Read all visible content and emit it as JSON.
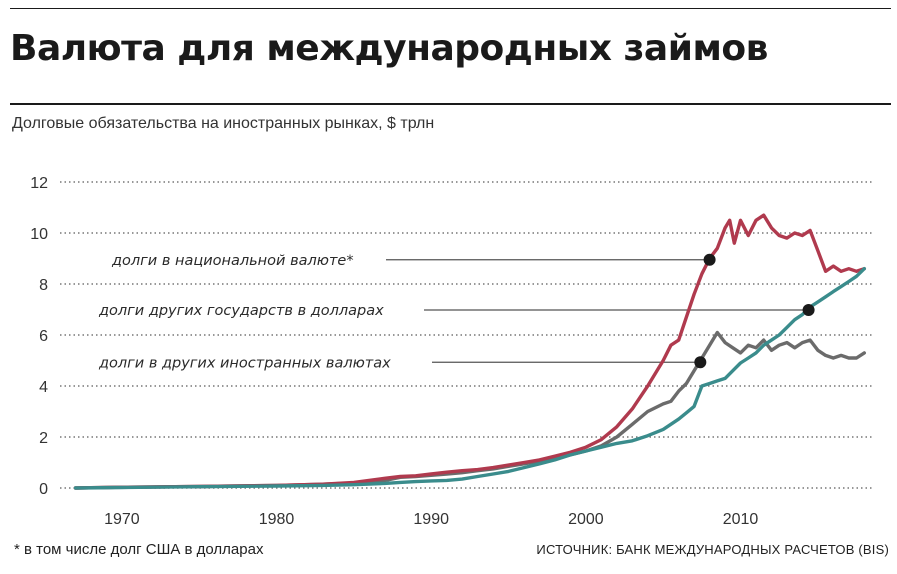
{
  "header": {
    "title": "Валюта для международных займов",
    "subtitle": "Долговые обязательства на иностранных рынках, $ трлн"
  },
  "footer": {
    "footnote": "* в том числе долг США в долларах",
    "source": "ИСТОЧНИК: БАНК МЕЖДУНАРОДНЫХ РАСЧЕТОВ (BIS)"
  },
  "colors": {
    "domestic": "#b03a4e",
    "foreign": "#6b6b6b",
    "dollar": "#3a8c8c",
    "grid": "#777777",
    "dot": "#1a1a1a"
  },
  "chart_data": {
    "type": "line",
    "xlim": [
      1966,
      2018.5
    ],
    "ylim": [
      0,
      12
    ],
    "y_ticks": [
      "0",
      "2",
      "4",
      "6",
      "8",
      "10",
      "12"
    ],
    "x_ticks": [
      "1970",
      "1980",
      "1990",
      "2000",
      "2010"
    ],
    "grid": "horizontal dotted",
    "series": [
      {
        "key": "domestic",
        "name": "долги в национальной валюте*",
        "color": "#b03a4e",
        "x": [
          1967,
          1970,
          1975,
          1980,
          1983,
          1985,
          1987,
          1988,
          1989,
          1990,
          1991,
          1992,
          1993,
          1994,
          1995,
          1996,
          1997,
          1998,
          1999,
          2000,
          2001,
          2002,
          2003,
          2004,
          2005,
          2005.5,
          2006,
          2006.5,
          2007,
          2007.5,
          2008,
          2008.5,
          2009,
          2009.3,
          2009.6,
          2010,
          2010.5,
          2011,
          2011.5,
          2012,
          2012.5,
          2013,
          2013.5,
          2014,
          2014.5,
          2015,
          2015.5,
          2016,
          2016.5,
          2017,
          2017.5,
          2018
        ],
        "y": [
          0,
          0.03,
          0.06,
          0.1,
          0.15,
          0.22,
          0.38,
          0.45,
          0.48,
          0.55,
          0.62,
          0.68,
          0.72,
          0.8,
          0.9,
          1.0,
          1.1,
          1.25,
          1.4,
          1.6,
          1.9,
          2.4,
          3.1,
          4.0,
          5.0,
          5.6,
          5.8,
          6.7,
          7.6,
          8.4,
          9.0,
          9.4,
          10.2,
          10.5,
          9.6,
          10.5,
          9.9,
          10.5,
          10.7,
          10.2,
          9.9,
          9.8,
          10.0,
          9.9,
          10.1,
          9.3,
          8.5,
          8.7,
          8.5,
          8.6,
          8.5,
          8.6
        ]
      },
      {
        "key": "foreign",
        "name": "долги в других иностранных валютах",
        "color": "#6b6b6b",
        "x": [
          1967,
          1970,
          1975,
          1980,
          1983,
          1985,
          1987,
          1988,
          1989,
          1990,
          1991,
          1992,
          1993,
          1994,
          1995,
          1996,
          1997,
          1998,
          1999,
          2000,
          2001,
          2002,
          2003,
          2004,
          2005,
          2005.5,
          2006,
          2006.5,
          2007,
          2007.5,
          2008,
          2008.5,
          2009,
          2009.5,
          2010,
          2010.5,
          2011,
          2011.5,
          2012,
          2012.5,
          2013,
          2013.5,
          2014,
          2014.5,
          2015,
          2015.5,
          2016,
          2016.5,
          2017,
          2017.5,
          2018
        ],
        "y": [
          0,
          0.03,
          0.06,
          0.1,
          0.15,
          0.2,
          0.3,
          0.42,
          0.45,
          0.5,
          0.55,
          0.6,
          0.68,
          0.75,
          0.85,
          0.95,
          1.05,
          1.15,
          1.3,
          1.45,
          1.65,
          2.0,
          2.5,
          3.0,
          3.3,
          3.4,
          3.8,
          4.1,
          4.6,
          5.1,
          5.6,
          6.1,
          5.7,
          5.5,
          5.3,
          5.6,
          5.5,
          5.8,
          5.4,
          5.6,
          5.7,
          5.5,
          5.7,
          5.8,
          5.4,
          5.2,
          5.1,
          5.2,
          5.1,
          5.1,
          5.3
        ]
      },
      {
        "key": "dollar",
        "name": "долги других государств в долларах",
        "color": "#3a8c8c",
        "x": [
          1967,
          1970,
          1975,
          1980,
          1983,
          1985,
          1987,
          1988,
          1989,
          1990,
          1991,
          1992,
          1993,
          1994,
          1995,
          1996,
          1997,
          1998,
          1999,
          2000,
          2001,
          2002,
          2003,
          2004,
          2005,
          2006,
          2006.5,
          2007,
          2007.5,
          2008,
          2008.5,
          2009,
          2009.5,
          2010,
          2010.5,
          2011,
          2011.5,
          2012,
          2012.5,
          2013,
          2013.5,
          2014,
          2014.5,
          2015,
          2015.5,
          2016,
          2016.5,
          2017,
          2017.5,
          2018
        ],
        "y": [
          0,
          0.02,
          0.05,
          0.08,
          0.1,
          0.13,
          0.18,
          0.22,
          0.25,
          0.28,
          0.3,
          0.35,
          0.45,
          0.55,
          0.65,
          0.8,
          0.95,
          1.1,
          1.3,
          1.45,
          1.6,
          1.75,
          1.85,
          2.05,
          2.3,
          2.7,
          2.95,
          3.2,
          4.0,
          4.1,
          4.2,
          4.3,
          4.6,
          4.9,
          5.1,
          5.3,
          5.6,
          5.8,
          6.0,
          6.3,
          6.6,
          6.8,
          7.1,
          7.3,
          7.5,
          7.7,
          7.9,
          8.1,
          8.3,
          8.6
        ]
      }
    ],
    "annotations": [
      {
        "series": "domestic",
        "text": "долги в национальной валюте*",
        "label_y": 8.95,
        "dot_x": 2008.0,
        "dot_y": 8.95
      },
      {
        "series": "dollar",
        "text": "долги других государств в долларах",
        "label_y": 6.98,
        "dot_x": 2014.4,
        "dot_y": 6.98
      },
      {
        "series": "foreign",
        "text": "долги в других иностранных валютах",
        "label_y": 4.93,
        "dot_x": 2007.4,
        "dot_y": 4.93
      }
    ]
  }
}
